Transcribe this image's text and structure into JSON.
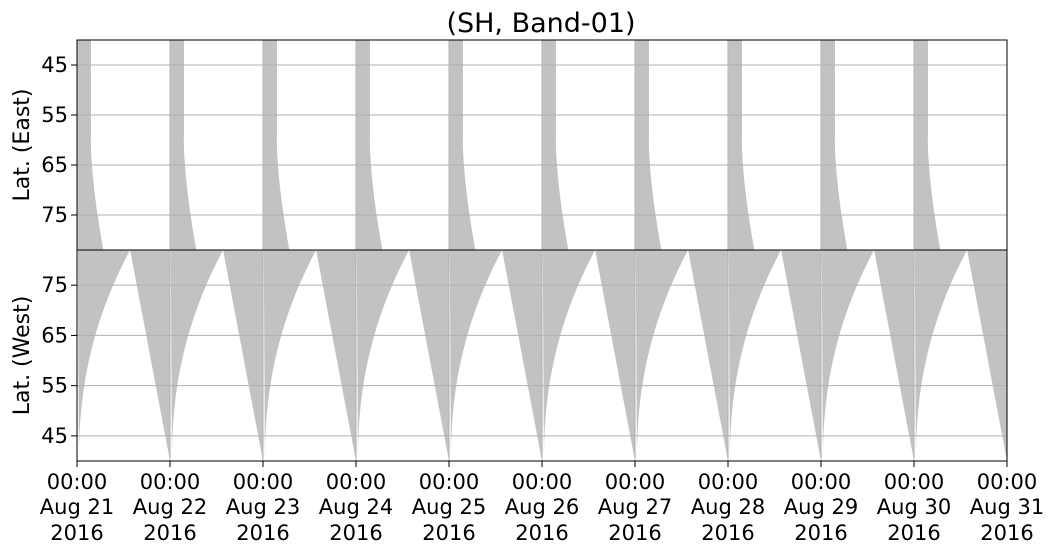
{
  "chart_data": {
    "type": "heatmap",
    "title": "(SH, Band-01)",
    "fill_color": "#c2c2c2",
    "grid_color": "#b0b0b0",
    "x_tick_labels": [
      {
        "time": "00:00",
        "date": "Aug 21",
        "year": "2016"
      },
      {
        "time": "00:00",
        "date": "Aug 22",
        "year": "2016"
      },
      {
        "time": "00:00",
        "date": "Aug 23",
        "year": "2016"
      },
      {
        "time": "00:00",
        "date": "Aug 24",
        "year": "2016"
      },
      {
        "time": "00:00",
        "date": "Aug 25",
        "year": "2016"
      },
      {
        "time": "00:00",
        "date": "Aug 26",
        "year": "2016"
      },
      {
        "time": "00:00",
        "date": "Aug 27",
        "year": "2016"
      },
      {
        "time": "00:00",
        "date": "Aug 28",
        "year": "2016"
      },
      {
        "time": "00:00",
        "date": "Aug 29",
        "year": "2016"
      },
      {
        "time": "00:00",
        "date": "Aug 30",
        "year": "2016"
      },
      {
        "time": "00:00",
        "date": "Aug 31",
        "year": "2016"
      }
    ],
    "xlim": [
      "2016-08-21T00:00",
      "2016-08-31T00:00"
    ],
    "panels": [
      {
        "name": "east",
        "ylabel": "Lat. (East)",
        "ylim": [
          40,
          82
        ],
        "y_direction": "increasing-downward",
        "yticks": [
          45,
          55,
          65,
          75
        ],
        "passes": [
          {
            "lead_start_hour": 0.15,
            "band_end_hour": 3.6,
            "sweep_start_hour": 3.55,
            "sweep_end_hour": 6.8
          },
          {
            "lead_start_hour": 24.15,
            "band_end_hour": 27.6,
            "sweep_start_hour": 27.55,
            "sweep_end_hour": 30.8
          },
          {
            "lead_start_hour": 48.15,
            "band_end_hour": 51.6,
            "sweep_start_hour": 51.55,
            "sweep_end_hour": 54.8
          },
          {
            "lead_start_hour": 72.15,
            "band_end_hour": 75.6,
            "sweep_start_hour": 75.55,
            "sweep_end_hour": 78.8
          },
          {
            "lead_start_hour": 96.15,
            "band_end_hour": 99.6,
            "sweep_start_hour": 99.55,
            "sweep_end_hour": 102.8
          },
          {
            "lead_start_hour": 120.15,
            "band_end_hour": 123.6,
            "sweep_start_hour": 123.55,
            "sweep_end_hour": 126.8
          },
          {
            "lead_start_hour": 144.15,
            "band_end_hour": 147.6,
            "sweep_start_hour": 147.55,
            "sweep_end_hour": 150.8
          },
          {
            "lead_start_hour": 168.15,
            "band_end_hour": 171.6,
            "sweep_start_hour": 171.55,
            "sweep_end_hour": 174.8
          },
          {
            "lead_start_hour": 192.15,
            "band_end_hour": 195.6,
            "sweep_start_hour": 195.55,
            "sweep_end_hour": 198.8
          },
          {
            "lead_start_hour": 216.15,
            "band_end_hour": 219.6,
            "sweep_start_hour": 219.55,
            "sweep_end_hour": 222.8
          }
        ]
      },
      {
        "name": "west",
        "ylabel": "Lat. (West)",
        "ylim": [
          82,
          40
        ],
        "y_direction": "increasing-upward",
        "yticks": [
          75,
          65,
          55,
          45
        ],
        "passes": [
          {
            "lead_start_hour": 0.2,
            "sweep_start_hour": 0.5,
            "sweep_end_hour": 13.7,
            "band_end_hour": 24.0
          },
          {
            "lead_start_hour": 24.2,
            "sweep_start_hour": 24.5,
            "sweep_end_hour": 37.7,
            "band_end_hour": 48.0
          },
          {
            "lead_start_hour": 48.2,
            "sweep_start_hour": 48.5,
            "sweep_end_hour": 61.7,
            "band_end_hour": 72.0
          },
          {
            "lead_start_hour": 72.2,
            "sweep_start_hour": 72.5,
            "sweep_end_hour": 85.7,
            "band_end_hour": 96.0
          },
          {
            "lead_start_hour": 96.2,
            "sweep_start_hour": 96.5,
            "sweep_end_hour": 109.7,
            "band_end_hour": 120.0
          },
          {
            "lead_start_hour": 120.2,
            "sweep_start_hour": 120.5,
            "sweep_end_hour": 133.7,
            "band_end_hour": 144.0
          },
          {
            "lead_start_hour": 144.2,
            "sweep_start_hour": 144.5,
            "sweep_end_hour": 157.7,
            "band_end_hour": 168.0
          },
          {
            "lead_start_hour": 168.2,
            "sweep_start_hour": 168.5,
            "sweep_end_hour": 181.7,
            "band_end_hour": 192.0
          },
          {
            "lead_start_hour": 192.2,
            "sweep_start_hour": 192.5,
            "sweep_end_hour": 205.7,
            "band_end_hour": 216.0
          },
          {
            "lead_start_hour": 216.2,
            "sweep_start_hour": 216.5,
            "sweep_end_hour": 229.7,
            "band_end_hour": 240.0
          }
        ]
      }
    ]
  }
}
